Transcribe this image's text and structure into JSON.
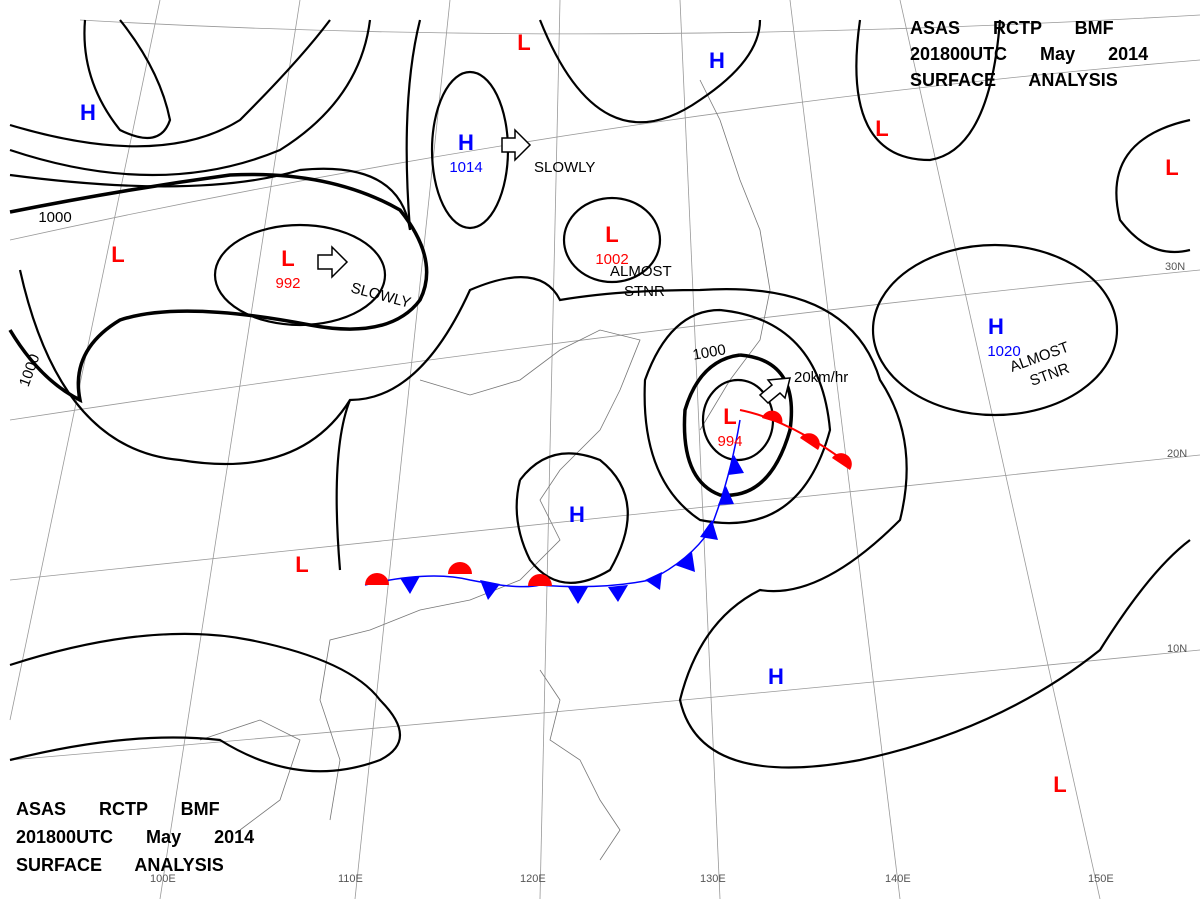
{
  "header": {
    "lines": [
      "ASAS RCTP BMF",
      "201800UTC May 2014",
      "SURFACE ANALYSIS"
    ]
  },
  "centers": [
    {
      "type": "H"
    },
    {
      "type": "H",
      "pressure": "1014"
    },
    {
      "type": "L"
    },
    {
      "type": "H"
    },
    {
      "type": "L"
    },
    {
      "type": "L"
    },
    {
      "type": "L"
    },
    {
      "type": "L",
      "pressure": "992"
    },
    {
      "type": "L",
      "pressure": "1002"
    },
    {
      "type": "H",
      "pressure": "1020"
    },
    {
      "type": "L",
      "pressure": "994"
    },
    {
      "type": "H"
    },
    {
      "type": "L"
    },
    {
      "type": "H"
    },
    {
      "type": "L"
    }
  ],
  "isobar_labels": [
    "1000",
    "1000",
    "1000"
  ],
  "annotations": [
    "SLOWLY",
    "SLOWLY",
    "ALMOST STNR",
    "ALMOST STNR",
    "20km/hr"
  ],
  "latitudes": [
    "30N",
    "20N",
    "10N"
  ],
  "longitudes": [
    "100E",
    "110E",
    "120E",
    "130E",
    "140E",
    "150E"
  ]
}
